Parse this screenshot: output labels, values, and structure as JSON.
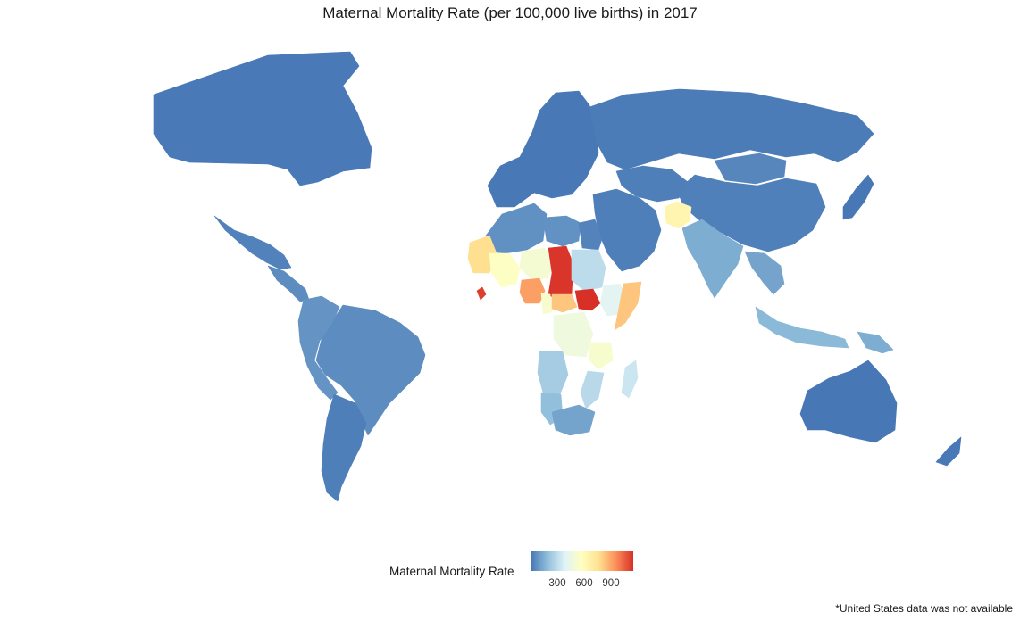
{
  "title": "Maternal Mortality Rate (per 100,000 live births) in 2017",
  "legend": {
    "title": "Maternal Mortality Rate",
    "ticks": [
      "300",
      "600",
      "900"
    ],
    "tick_values": [
      300,
      600,
      900
    ],
    "range": [
      0,
      1150
    ],
    "colors": [
      "#4575b4",
      "#91bfdb",
      "#e0f3f8",
      "#ffffbf",
      "#fee090",
      "#fc8d59",
      "#d73027"
    ]
  },
  "footnote": "*United States data was not available",
  "chart_data": {
    "type": "choropleth",
    "variable": "Maternal Mortality Rate",
    "regions": [
      {
        "name": "Canada",
        "value": 10
      },
      {
        "name": "Mexico",
        "value": 33
      },
      {
        "name": "Central America",
        "value": 60
      },
      {
        "name": "Brazil",
        "value": 60
      },
      {
        "name": "Andean South America",
        "value": 80
      },
      {
        "name": "Southern Cone",
        "value": 25
      },
      {
        "name": "Europe",
        "value": 8
      },
      {
        "name": "Russia",
        "value": 17
      },
      {
        "name": "China",
        "value": 29
      },
      {
        "name": "Mongolia",
        "value": 45
      },
      {
        "name": "Central Asia",
        "value": 25
      },
      {
        "name": "Middle East",
        "value": 25
      },
      {
        "name": "Afghanistan",
        "value": 638
      },
      {
        "name": "India",
        "value": 145
      },
      {
        "name": "Southeast Asia",
        "value": 120
      },
      {
        "name": "Indonesia",
        "value": 177
      },
      {
        "name": "Papua New Guinea",
        "value": 145
      },
      {
        "name": "Japan",
        "value": 5
      },
      {
        "name": "Australia",
        "value": 6
      },
      {
        "name": "New Zealand",
        "value": 9
      },
      {
        "name": "North Africa",
        "value": 70
      },
      {
        "name": "Libya",
        "value": 72
      },
      {
        "name": "Egypt",
        "value": 37
      },
      {
        "name": "Mauritania",
        "value": 766
      },
      {
        "name": "Mali",
        "value": 562
      },
      {
        "name": "Niger",
        "value": 509
      },
      {
        "name": "Chad",
        "value": 1140
      },
      {
        "name": "Sudan",
        "value": 295
      },
      {
        "name": "South Sudan",
        "value": 1150
      },
      {
        "name": "Sierra Leone",
        "value": 1120
      },
      {
        "name": "Nigeria",
        "value": 917
      },
      {
        "name": "Cameroon",
        "value": 529
      },
      {
        "name": "Central African Republic",
        "value": 829
      },
      {
        "name": "Ethiopia",
        "value": 401
      },
      {
        "name": "Somalia",
        "value": 829
      },
      {
        "name": "DR Congo",
        "value": 473
      },
      {
        "name": "Angola",
        "value": 241
      },
      {
        "name": "Tanzania",
        "value": 524
      },
      {
        "name": "Mozambique",
        "value": 289
      },
      {
        "name": "Madagascar",
        "value": 335
      },
      {
        "name": "Namibia",
        "value": 195
      },
      {
        "name": "South Africa",
        "value": 119
      }
    ]
  }
}
